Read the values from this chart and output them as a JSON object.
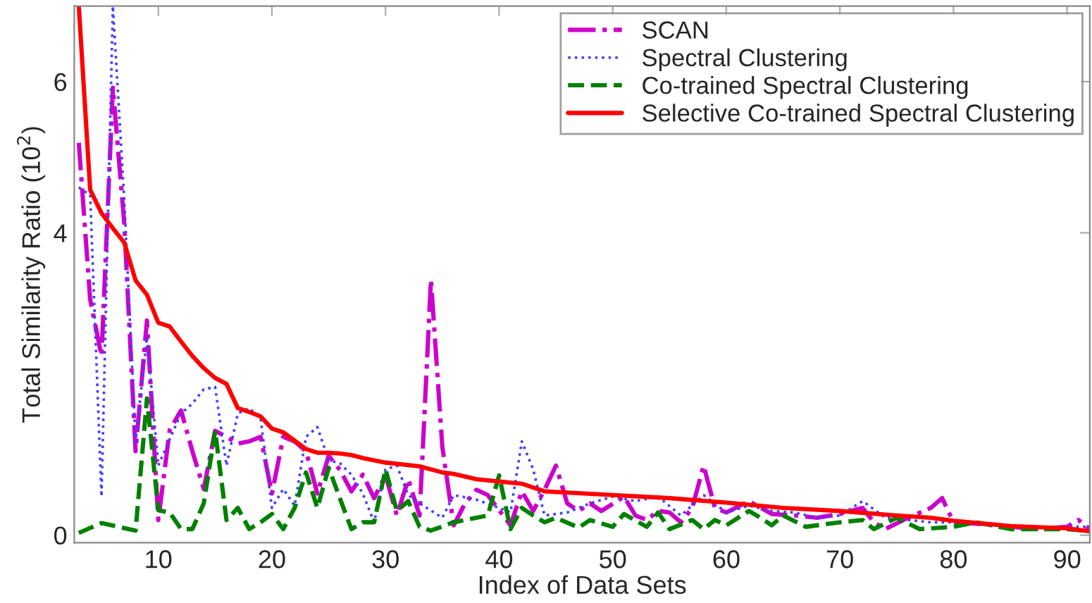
{
  "chart_data": {
    "type": "line",
    "xlabel": "Index of Data Sets",
    "ylabel": "Total Similarity Ratio (10$^{2}$)",
    "xlim": [
      2.6,
      92
    ],
    "xticks": [
      10,
      20,
      30,
      40,
      50,
      60,
      70,
      80,
      90
    ],
    "ylim": [
      -0.1,
      7.0
    ],
    "yticks": [
      0,
      4,
      6
    ],
    "grid": false,
    "legend": "top right",
    "marker": "none",
    "series": [
      {
        "name": "SCAN",
        "color": "#cc00cc",
        "line_style": "dashdot",
        "x": [
          3,
          4,
          5,
          6,
          7,
          8,
          9,
          10,
          11,
          12,
          13,
          14,
          15,
          16,
          17,
          18,
          19,
          20,
          21,
          22,
          23,
          24,
          25,
          26,
          27,
          28,
          29,
          30,
          31,
          32,
          33,
          34,
          35,
          36,
          37,
          38,
          39,
          41,
          42,
          43,
          44,
          45,
          46,
          47,
          48,
          49,
          51,
          52,
          53,
          54,
          55,
          56,
          57,
          58,
          59,
          60,
          62,
          64,
          66,
          68,
          70,
          72,
          73,
          74,
          76,
          78,
          79,
          80,
          84,
          87,
          90,
          91,
          92
        ],
        "values": [
          5.19,
          3.12,
          2.37,
          5.92,
          4.13,
          1.11,
          2.84,
          0.2,
          1.39,
          1.65,
          1.11,
          0.61,
          1.38,
          1.3,
          1.21,
          1.24,
          1.3,
          0.55,
          1.3,
          1.24,
          1.11,
          0.55,
          1.05,
          0.86,
          0.58,
          0.8,
          0.49,
          0.79,
          0.26,
          0.74,
          0.26,
          3.38,
          1.17,
          0.13,
          0.42,
          0.6,
          0.53,
          0.13,
          0.58,
          0.32,
          0.6,
          0.92,
          0.42,
          0.32,
          0.42,
          0.32,
          0.51,
          0.26,
          0.2,
          0.32,
          0.3,
          0.17,
          0.36,
          0.92,
          0.36,
          0.3,
          0.45,
          0.28,
          0.26,
          0.23,
          0.28,
          0.36,
          0.17,
          0.08,
          0.23,
          0.36,
          0.49,
          0.17,
          0.13,
          0.08,
          0.11,
          0.2,
          0.08
        ]
      },
      {
        "name": "Spectral Clustering",
        "color": "#4040ff",
        "line_style": "dotted",
        "x": [
          3,
          4,
          5,
          6,
          7,
          8,
          9,
          10,
          11,
          12,
          13,
          14,
          15,
          16,
          17,
          18,
          19,
          20,
          21,
          22,
          23,
          24,
          25,
          26,
          27,
          28,
          29,
          30,
          31,
          32,
          33,
          35,
          36,
          38,
          40,
          41,
          42,
          43,
          44,
          46,
          48,
          50,
          52,
          54,
          56,
          58,
          60,
          62,
          64,
          66,
          68,
          70,
          72,
          74,
          78,
          80,
          85,
          92
        ],
        "values": [
          4.6,
          4.5,
          0.51,
          7.0,
          4.44,
          1.24,
          2.62,
          0.92,
          1.27,
          1.61,
          1.74,
          1.93,
          1.96,
          0.92,
          1.61,
          1.68,
          1.55,
          0.36,
          0.61,
          0.39,
          1.3,
          1.43,
          0.99,
          0.95,
          0.8,
          0.55,
          0.17,
          0.87,
          0.92,
          0.53,
          0.42,
          0.23,
          0.53,
          0.47,
          0.36,
          0.3,
          1.24,
          0.87,
          0.26,
          0.3,
          0.42,
          0.51,
          0.45,
          0.51,
          0.26,
          0.53,
          0.3,
          0.39,
          0.32,
          0.3,
          0.23,
          0.26,
          0.45,
          0.23,
          0.17,
          0.17,
          0.11,
          0.11
        ]
      },
      {
        "name": "Co-trained Spectral Clustering",
        "color": "#008000",
        "line_style": "dashed",
        "x": [
          3,
          5,
          8,
          9,
          10,
          11,
          12,
          13,
          14,
          15,
          16,
          17,
          18,
          19,
          20,
          21,
          22,
          23,
          24,
          25,
          26,
          27,
          28,
          29,
          30,
          31,
          32,
          33,
          34,
          36,
          38,
          39,
          40,
          41,
          42,
          43,
          44,
          45,
          47,
          48,
          50,
          51,
          53,
          54,
          55,
          57,
          58,
          59,
          60,
          62,
          63,
          64,
          65,
          67,
          70,
          72,
          73,
          75,
          77,
          80,
          82,
          85,
          88,
          90,
          92
        ],
        "values": [
          0.03,
          0.16,
          0.06,
          1.81,
          0.33,
          0.3,
          0.08,
          0.08,
          0.42,
          1.38,
          0.2,
          0.36,
          0.08,
          0.17,
          0.28,
          0.08,
          0.36,
          0.83,
          0.36,
          0.89,
          0.48,
          0.08,
          0.17,
          0.17,
          0.87,
          0.32,
          0.45,
          0.11,
          0.06,
          0.17,
          0.23,
          0.26,
          0.79,
          0.08,
          0.36,
          0.26,
          0.17,
          0.23,
          0.1,
          0.2,
          0.11,
          0.28,
          0.11,
          0.3,
          0.08,
          0.2,
          0.08,
          0.2,
          0.13,
          0.32,
          0.23,
          0.13,
          0.26,
          0.11,
          0.17,
          0.2,
          0.08,
          0.23,
          0.08,
          0.11,
          0.17,
          0.08,
          0.08,
          0.08,
          0.05
        ]
      },
      {
        "name": "Selective Co-trained Spectral Clustering",
        "color": "#ff0000",
        "line_style": "solid",
        "x": [
          3,
          4,
          5,
          6,
          7,
          8,
          9,
          10,
          11,
          12,
          13,
          14,
          15,
          16,
          17,
          18,
          19,
          20,
          21,
          22,
          23,
          24,
          25,
          26,
          27,
          28,
          30,
          33,
          35,
          36,
          38,
          40,
          42,
          44,
          50,
          55,
          60,
          65,
          70,
          75,
          78,
          80,
          85,
          90,
          92
        ],
        "values": [
          7.0,
          4.57,
          4.26,
          4.06,
          3.87,
          3.37,
          3.18,
          2.81,
          2.76,
          2.56,
          2.37,
          2.21,
          2.08,
          2.0,
          1.68,
          1.63,
          1.57,
          1.41,
          1.36,
          1.25,
          1.14,
          1.09,
          1.09,
          1.08,
          1.06,
          1.02,
          0.96,
          0.91,
          0.83,
          0.81,
          0.74,
          0.71,
          0.68,
          0.58,
          0.53,
          0.49,
          0.43,
          0.36,
          0.32,
          0.26,
          0.23,
          0.19,
          0.12,
          0.09,
          0.05
        ]
      }
    ]
  }
}
